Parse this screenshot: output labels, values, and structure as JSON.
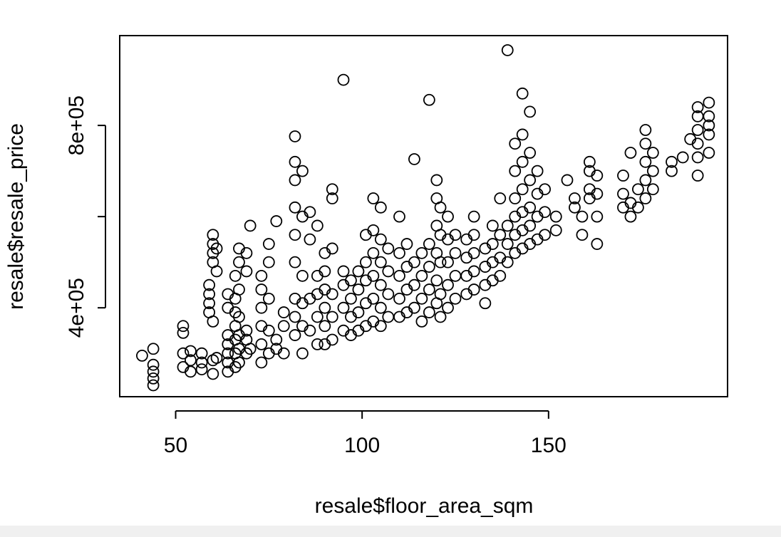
{
  "chart_data": {
    "type": "scatter",
    "xlabel": "resale$floor_area_sqm",
    "ylabel": "resale$resale_price",
    "color": "#000000",
    "xlim": [
      35,
      198
    ],
    "ylim": [
      205000,
      997000
    ],
    "xticks": [
      50,
      100,
      150
    ],
    "yticks": [
      {
        "value": 400000,
        "label": "4e+05"
      },
      {
        "value": 600000,
        "label": null
      },
      {
        "value": 800000,
        "label": "8e+05"
      }
    ],
    "x": [
      41,
      44,
      44,
      44,
      44,
      44,
      52,
      52,
      52,
      52,
      54,
      54,
      54,
      57,
      57,
      57,
      59,
      59,
      59,
      59,
      60,
      60,
      60,
      60,
      60,
      60,
      60,
      61,
      61,
      61,
      64,
      64,
      64,
      64,
      64,
      64,
      64,
      66,
      66,
      66,
      66,
      66,
      66,
      66,
      67,
      67,
      67,
      67,
      67,
      67,
      67,
      69,
      69,
      69,
      69,
      69,
      70,
      70,
      73,
      73,
      73,
      73,
      73,
      73,
      75,
      75,
      75,
      75,
      75,
      77,
      77,
      77,
      79,
      79,
      79,
      82,
      82,
      82,
      82,
      82,
      82,
      82,
      82,
      82,
      84,
      84,
      84,
      84,
      84,
      84,
      86,
      86,
      86,
      86,
      88,
      88,
      88,
      88,
      88,
      90,
      90,
      90,
      90,
      90,
      90,
      92,
      92,
      92,
      92,
      92,
      92,
      95,
      95,
      95,
      95,
      95,
      97,
      97,
      97,
      97,
      99,
      99,
      99,
      99,
      101,
      101,
      101,
      101,
      101,
      103,
      103,
      103,
      103,
      103,
      103,
      105,
      105,
      105,
      105,
      105,
      105,
      107,
      107,
      107,
      107,
      110,
      110,
      110,
      110,
      110,
      112,
      112,
      112,
      112,
      114,
      114,
      114,
      114,
      116,
      116,
      116,
      116,
      118,
      118,
      118,
      118,
      118,
      120,
      120,
      120,
      120,
      120,
      120,
      121,
      121,
      121,
      121,
      121,
      123,
      123,
      123,
      123,
      123,
      125,
      125,
      125,
      125,
      128,
      128,
      128,
      128,
      130,
      130,
      130,
      130,
      130,
      133,
      133,
      133,
      133,
      135,
      135,
      135,
      135,
      137,
      137,
      137,
      137,
      139,
      139,
      139,
      139,
      141,
      141,
      141,
      141,
      141,
      141,
      143,
      143,
      143,
      143,
      143,
      143,
      143,
      145,
      145,
      145,
      145,
      145,
      145,
      147,
      147,
      147,
      147,
      149,
      149,
      149,
      152,
      152,
      155,
      157,
      157,
      159,
      159,
      161,
      161,
      161,
      161,
      163,
      163,
      163,
      163,
      170,
      170,
      170,
      172,
      172,
      172,
      174,
      174,
      176,
      176,
      176,
      176,
      176,
      178,
      178,
      178,
      183,
      183,
      186,
      188,
      190,
      190,
      190,
      190,
      190,
      190,
      193,
      193,
      193,
      193,
      193
    ],
    "values": [
      295000,
      230000,
      245000,
      260000,
      275000,
      310000,
      270000,
      300000,
      360000,
      345000,
      260000,
      285000,
      305000,
      265000,
      280000,
      300000,
      390000,
      410000,
      430000,
      450000,
      500000,
      520000,
      540000,
      560000,
      255000,
      285000,
      370000,
      480000,
      530000,
      290000,
      260000,
      280000,
      300000,
      320000,
      340000,
      400000,
      430000,
      270000,
      300000,
      330000,
      360000,
      390000,
      420000,
      470000,
      280000,
      310000,
      340000,
      380000,
      440000,
      500000,
      530000,
      300000,
      330000,
      350000,
      480000,
      520000,
      580000,
      310000,
      280000,
      320000,
      360000,
      400000,
      440000,
      470000,
      300000,
      350000,
      420000,
      500000,
      540000,
      330000,
      590000,
      310000,
      300000,
      360000,
      390000,
      340000,
      380000,
      420000,
      500000,
      560000,
      620000,
      680000,
      720000,
      776000,
      300000,
      360000,
      410000,
      470000,
      600000,
      700000,
      350000,
      420000,
      550000,
      610000,
      320000,
      380000,
      430000,
      470000,
      580000,
      320000,
      360000,
      400000,
      440000,
      480000,
      520000,
      330000,
      380000,
      430000,
      530000,
      640000,
      660000,
      350000,
      400000,
      450000,
      480000,
      900000,
      340000,
      380000,
      420000,
      460000,
      350000,
      390000,
      440000,
      480000,
      360000,
      410000,
      460000,
      500000,
      560000,
      370000,
      420000,
      470000,
      520000,
      570000,
      640000,
      360000,
      400000,
      450000,
      500000,
      550000,
      620000,
      380000,
      430000,
      480000,
      530000,
      380000,
      420000,
      470000,
      520000,
      600000,
      390000,
      440000,
      490000,
      540000,
      400000,
      450000,
      500000,
      726000,
      370000,
      420000,
      470000,
      520000,
      390000,
      440000,
      490000,
      540000,
      856000,
      410000,
      460000,
      520000,
      580000,
      640000,
      680000,
      380000,
      430000,
      500000,
      560000,
      620000,
      400000,
      450000,
      500000,
      550000,
      600000,
      420000,
      470000,
      520000,
      560000,
      430000,
      470000,
      510000,
      550000,
      440000,
      480000,
      520000,
      560000,
      600000,
      410000,
      450000,
      490000,
      530000,
      460000,
      500000,
      540000,
      580000,
      470000,
      510000,
      560000,
      640000,
      500000,
      540000,
      580000,
      965000,
      520000,
      560000,
      600000,
      640000,
      700000,
      760000,
      530000,
      570000,
      610000,
      660000,
      720000,
      780000,
      870000,
      540000,
      580000,
      620000,
      680000,
      740000,
      830000,
      550000,
      600000,
      650000,
      700000,
      560000,
      610000,
      660000,
      570000,
      600000,
      680000,
      620000,
      640000,
      560000,
      600000,
      640000,
      660000,
      700000,
      720000,
      540000,
      600000,
      650000,
      690000,
      620000,
      650000,
      690000,
      600000,
      630000,
      740000,
      620000,
      660000,
      640000,
      680000,
      720000,
      760000,
      790000,
      660000,
      700000,
      740000,
      700000,
      720000,
      730000,
      770000,
      690000,
      730000,
      760000,
      790000,
      820000,
      840000,
      740000,
      780000,
      800000,
      820000,
      850000
    ]
  }
}
